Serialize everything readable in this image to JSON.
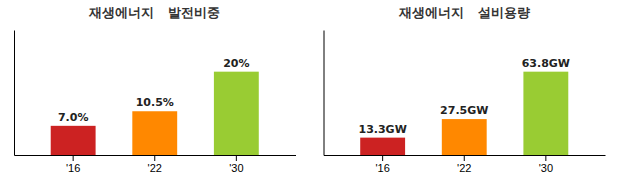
{
  "chart_data": [
    {
      "type": "bar",
      "title": "재생에너지   발전비중",
      "categories": [
        "'16",
        "'22",
        "'30"
      ],
      "values": [
        7.0,
        10.5,
        20.0
      ],
      "value_labels": [
        "7.0%",
        "10.5%",
        "20%"
      ],
      "colors": [
        "#cc2222",
        "#ff8800",
        "#99cc33"
      ],
      "ylim": [
        0,
        30
      ],
      "data_labels": true,
      "tick_labels": "x"
    },
    {
      "type": "bar",
      "title": "재생에너지   설비용량",
      "categories": [
        "'16",
        "'22",
        "'30"
      ],
      "values": [
        13.3,
        27.5,
        63.8
      ],
      "value_labels": [
        "13.3GW",
        "27.5GW",
        "63.8GW"
      ],
      "colors": [
        "#cc2222",
        "#ff8800",
        "#99cc33"
      ],
      "ylim": [
        0,
        95.7
      ],
      "data_labels": true,
      "tick_labels": "x"
    }
  ]
}
